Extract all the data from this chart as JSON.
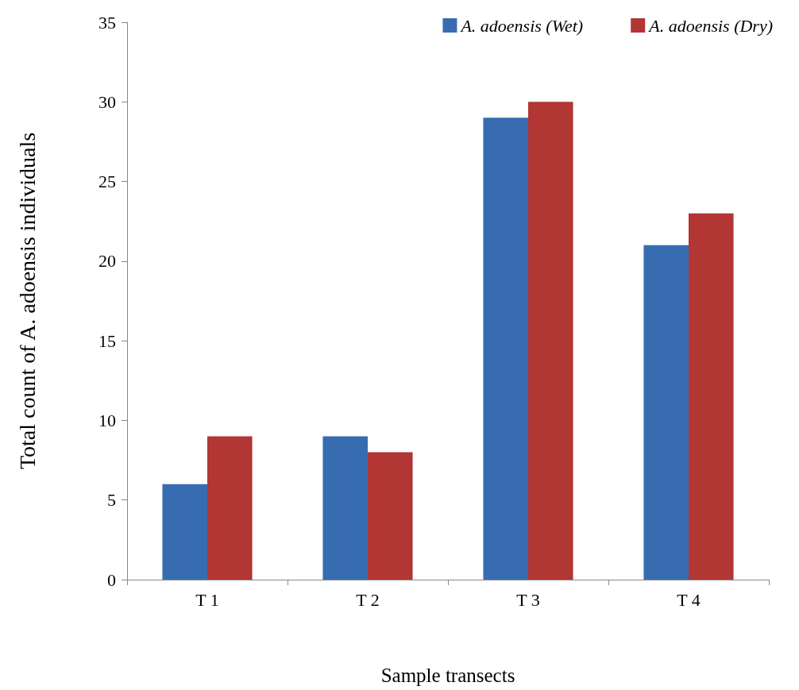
{
  "chart_data": {
    "type": "bar",
    "xlabel": "Sample transects",
    "ylabel": "Total count of A. adoensis individuals",
    "categories": [
      "T 1",
      "T 2",
      "T 3",
      "T 4"
    ],
    "series": [
      {
        "name": "A. adoensis (Wet)",
        "color": "#376db0",
        "values": [
          6,
          9,
          29,
          21
        ]
      },
      {
        "name": "A. adoensis (Dry)",
        "color": "#b13634",
        "values": [
          9,
          8,
          30,
          23
        ]
      }
    ],
    "ylim": [
      0,
      35
    ],
    "yticks": [
      0,
      5,
      10,
      15,
      20,
      25,
      30,
      35
    ],
    "grid": false,
    "legend": "top right"
  }
}
